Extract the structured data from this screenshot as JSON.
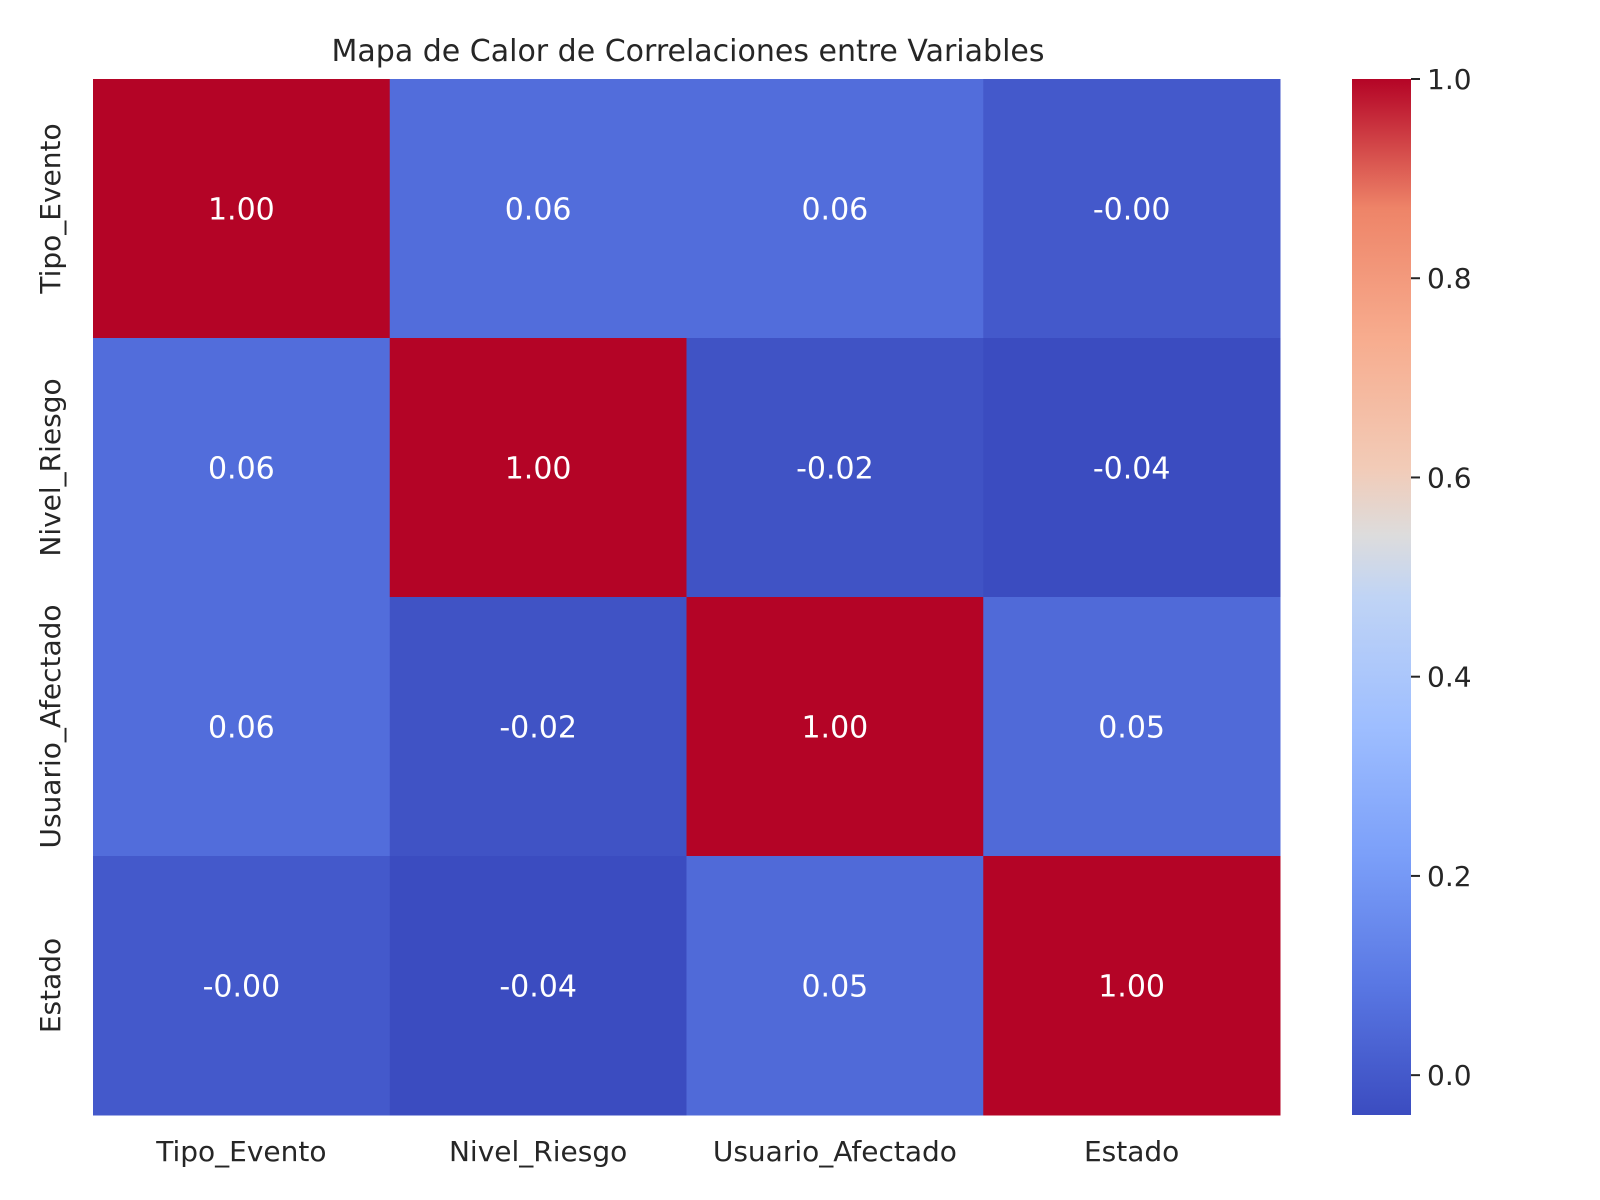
{
  "chart_data": {
    "type": "heatmap",
    "title": "Mapa de Calor de Correlaciones entre Variables",
    "xlabel": "",
    "ylabel": "",
    "x_categories": [
      "Tipo_Evento",
      "Nivel_Riesgo",
      "Usuario_Afectado",
      "Estado"
    ],
    "y_categories": [
      "Tipo_Evento",
      "Nivel_Riesgo",
      "Usuario_Afectado",
      "Estado"
    ],
    "values": [
      [
        1.0,
        0.06,
        0.06,
        -0.001
      ],
      [
        0.06,
        1.0,
        -0.02,
        -0.04
      ],
      [
        0.06,
        -0.02,
        1.0,
        0.05
      ],
      [
        -0.001,
        -0.04,
        0.05,
        1.0
      ]
    ],
    "annotations": [
      [
        "1.00",
        "0.06",
        "0.06",
        "-0.00"
      ],
      [
        "0.06",
        "1.00",
        "-0.02",
        "-0.04"
      ],
      [
        "0.06",
        "-0.02",
        "1.00",
        "0.05"
      ],
      [
        "-0.00",
        "-0.04",
        "0.05",
        "1.00"
      ]
    ],
    "colormap": "coolwarm",
    "vmin": -0.04,
    "vmax": 1.0,
    "colorbar": {
      "ticks": [
        0.0,
        0.2,
        0.4,
        0.6,
        0.8,
        1.0
      ],
      "tick_labels": [
        "0.0",
        "0.2",
        "0.4",
        "0.6",
        "0.8",
        "1.0"
      ],
      "placement": "right"
    },
    "grid": false
  }
}
